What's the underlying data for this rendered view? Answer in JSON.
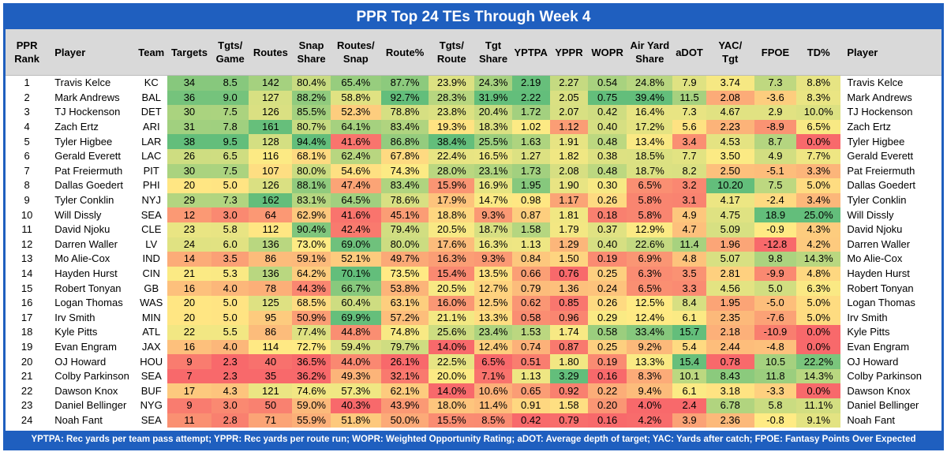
{
  "header": {
    "title": "PPR Top 24 TEs Through Week 4"
  },
  "table": {
    "columns": [
      "PPR\nRank",
      "Player",
      "Team",
      "Targets",
      "Tgts/\nGame",
      "Routes",
      "Snap\nShare",
      "Routes/\nSnap",
      "Route%",
      "Tgts/\nRoute",
      "Tgt\nShare",
      "YPTPA",
      "YPPR",
      "WOPR",
      "Air Yard\nShare",
      "aDOT",
      "YAC/\nTgt",
      "FPOE",
      "TD%",
      "Player"
    ],
    "rows": [
      [
        "1",
        "Travis Kelce",
        "KC",
        "34",
        "8.5",
        "142",
        "80.4%",
        "65.4%",
        "87.7%",
        "23.9%",
        "24.3%",
        "2.19",
        "2.27",
        "0.54",
        "24.8%",
        "7.9",
        "3.74",
        "7.3",
        "8.8%",
        "Travis Kelce"
      ],
      [
        "2",
        "Mark Andrews",
        "BAL",
        "36",
        "9.0",
        "127",
        "88.2%",
        "58.8%",
        "92.7%",
        "28.3%",
        "31.9%",
        "2.22",
        "2.05",
        "0.75",
        "39.4%",
        "11.5",
        "2.08",
        "-3.6",
        "8.3%",
        "Mark Andrews"
      ],
      [
        "3",
        "TJ Hockenson",
        "DET",
        "30",
        "7.5",
        "126",
        "85.5%",
        "52.3%",
        "78.8%",
        "23.8%",
        "20.4%",
        "1.72",
        "2.07",
        "0.42",
        "16.4%",
        "7.3",
        "4.67",
        "2.9",
        "10.0%",
        "TJ Hockenson"
      ],
      [
        "4",
        "Zach Ertz",
        "ARI",
        "31",
        "7.8",
        "161",
        "80.7%",
        "64.1%",
        "83.4%",
        "19.3%",
        "18.3%",
        "1.02",
        "1.12",
        "0.40",
        "17.2%",
        "5.6",
        "2.23",
        "-8.9",
        "6.5%",
        "Zach Ertz"
      ],
      [
        "5",
        "Tyler Higbee",
        "LAR",
        "38",
        "9.5",
        "128",
        "94.4%",
        "41.6%",
        "86.8%",
        "38.4%",
        "25.5%",
        "1.63",
        "1.91",
        "0.48",
        "13.4%",
        "3.4",
        "4.53",
        "8.7",
        "0.0%",
        "Tyler Higbee"
      ],
      [
        "6",
        "Gerald Everett",
        "LAC",
        "26",
        "6.5",
        "116",
        "68.1%",
        "62.4%",
        "67.8%",
        "22.4%",
        "16.5%",
        "1.27",
        "1.82",
        "0.38",
        "18.5%",
        "7.7",
        "3.50",
        "4.9",
        "7.7%",
        "Gerald Everett"
      ],
      [
        "7",
        "Pat Freiermuth",
        "PIT",
        "30",
        "7.5",
        "107",
        "80.0%",
        "54.6%",
        "74.3%",
        "28.0%",
        "23.1%",
        "1.73",
        "2.08",
        "0.48",
        "18.7%",
        "8.2",
        "2.50",
        "-5.1",
        "3.3%",
        "Pat Freiermuth"
      ],
      [
        "8",
        "Dallas Goedert",
        "PHI",
        "20",
        "5.0",
        "126",
        "88.1%",
        "47.4%",
        "83.4%",
        "15.9%",
        "16.9%",
        "1.95",
        "1.90",
        "0.30",
        "6.5%",
        "3.2",
        "10.20",
        "7.5",
        "5.0%",
        "Dallas Goedert"
      ],
      [
        "9",
        "Tyler Conklin",
        "NYJ",
        "29",
        "7.3",
        "162",
        "83.1%",
        "64.5%",
        "78.6%",
        "17.9%",
        "14.7%",
        "0.98",
        "1.17",
        "0.26",
        "5.8%",
        "3.1",
        "4.17",
        "-2.4",
        "3.4%",
        "Tyler Conklin"
      ],
      [
        "10",
        "Will Dissly",
        "SEA",
        "12",
        "3.0",
        "64",
        "62.9%",
        "41.6%",
        "45.1%",
        "18.8%",
        "9.3%",
        "0.87",
        "1.81",
        "0.18",
        "5.8%",
        "4.9",
        "4.75",
        "18.9",
        "25.0%",
        "Will Dissly"
      ],
      [
        "11",
        "David Njoku",
        "CLE",
        "23",
        "5.8",
        "112",
        "90.4%",
        "42.4%",
        "79.4%",
        "20.5%",
        "18.7%",
        "1.58",
        "1.79",
        "0.37",
        "12.9%",
        "4.7",
        "5.09",
        "-0.9",
        "4.3%",
        "David Njoku"
      ],
      [
        "12",
        "Darren Waller",
        "LV",
        "24",
        "6.0",
        "136",
        "73.0%",
        "69.0%",
        "80.0%",
        "17.6%",
        "16.3%",
        "1.13",
        "1.29",
        "0.40",
        "22.6%",
        "11.4",
        "1.96",
        "-12.8",
        "4.2%",
        "Darren Waller"
      ],
      [
        "13",
        "Mo Alie-Cox",
        "IND",
        "14",
        "3.5",
        "86",
        "59.1%",
        "52.1%",
        "49.7%",
        "16.3%",
        "9.3%",
        "0.84",
        "1.50",
        "0.19",
        "6.9%",
        "4.8",
        "5.07",
        "9.8",
        "14.3%",
        "Mo Alie-Cox"
      ],
      [
        "14",
        "Hayden Hurst",
        "CIN",
        "21",
        "5.3",
        "136",
        "64.2%",
        "70.1%",
        "73.5%",
        "15.4%",
        "13.5%",
        "0.66",
        "0.76",
        "0.25",
        "6.3%",
        "3.5",
        "2.81",
        "-9.9",
        "4.8%",
        "Hayden Hurst"
      ],
      [
        "15",
        "Robert Tonyan",
        "GB",
        "16",
        "4.0",
        "78",
        "44.3%",
        "66.7%",
        "53.8%",
        "20.5%",
        "12.7%",
        "0.79",
        "1.36",
        "0.24",
        "6.5%",
        "3.3",
        "4.56",
        "5.0",
        "6.3%",
        "Robert Tonyan"
      ],
      [
        "16",
        "Logan Thomas",
        "WAS",
        "20",
        "5.0",
        "125",
        "68.5%",
        "60.4%",
        "63.1%",
        "16.0%",
        "12.5%",
        "0.62",
        "0.85",
        "0.26",
        "12.5%",
        "8.4",
        "1.95",
        "-5.0",
        "5.0%",
        "Logan Thomas"
      ],
      [
        "17",
        "Irv Smith",
        "MIN",
        "20",
        "5.0",
        "95",
        "50.9%",
        "69.9%",
        "57.2%",
        "21.1%",
        "13.3%",
        "0.58",
        "0.96",
        "0.29",
        "12.4%",
        "6.1",
        "2.35",
        "-7.6",
        "5.0%",
        "Irv Smith"
      ],
      [
        "18",
        "Kyle Pitts",
        "ATL",
        "22",
        "5.5",
        "86",
        "77.4%",
        "44.8%",
        "74.8%",
        "25.6%",
        "23.4%",
        "1.53",
        "1.74",
        "0.58",
        "33.4%",
        "15.7",
        "2.18",
        "-10.9",
        "0.0%",
        "Kyle Pitts"
      ],
      [
        "19",
        "Evan Engram",
        "JAX",
        "16",
        "4.0",
        "114",
        "72.7%",
        "59.4%",
        "79.7%",
        "14.0%",
        "12.4%",
        "0.74",
        "0.87",
        "0.25",
        "9.2%",
        "5.4",
        "2.44",
        "-4.8",
        "0.0%",
        "Evan Engram"
      ],
      [
        "20",
        "OJ Howard",
        "HOU",
        "9",
        "2.3",
        "40",
        "36.5%",
        "44.0%",
        "26.1%",
        "22.5%",
        "6.5%",
        "0.51",
        "1.80",
        "0.19",
        "13.3%",
        "15.4",
        "0.78",
        "10.5",
        "22.2%",
        "OJ Howard"
      ],
      [
        "21",
        "Colby Parkinson",
        "SEA",
        "7",
        "2.3",
        "35",
        "36.2%",
        "49.3%",
        "32.1%",
        "20.0%",
        "7.1%",
        "1.13",
        "3.29",
        "0.16",
        "8.3%",
        "10.1",
        "8.43",
        "11.8",
        "14.3%",
        "Colby Parkinson"
      ],
      [
        "22",
        "Dawson Knox",
        "BUF",
        "17",
        "4.3",
        "121",
        "74.6%",
        "57.3%",
        "62.1%",
        "14.0%",
        "10.6%",
        "0.65",
        "0.92",
        "0.22",
        "9.4%",
        "6.1",
        "3.18",
        "-3.3",
        "0.0%",
        "Dawson Knox"
      ],
      [
        "23",
        "Daniel Bellinger",
        "NYG",
        "9",
        "3.0",
        "50",
        "59.0%",
        "40.3%",
        "43.9%",
        "18.0%",
        "11.4%",
        "0.91",
        "1.58",
        "0.20",
        "4.0%",
        "2.4",
        "6.78",
        "5.8",
        "11.1%",
        "Daniel Bellinger"
      ],
      [
        "24",
        "Noah Fant",
        "SEA",
        "11",
        "2.8",
        "71",
        "55.9%",
        "51.8%",
        "50.0%",
        "15.5%",
        "8.5%",
        "0.42",
        "0.79",
        "0.16",
        "4.2%",
        "3.9",
        "2.36",
        "-0.8",
        "9.1%",
        "Noah Fant"
      ]
    ]
  },
  "footer": {
    "note": "YPTPA: Rec yards per team pass attempt; YPPR: Rec yards per route run; WOPR: Weighted Opportunity Rating; aDOT: Average depth of target; YAC: Yards after catch; FPOE: Fantasy Points Over Expected"
  }
}
